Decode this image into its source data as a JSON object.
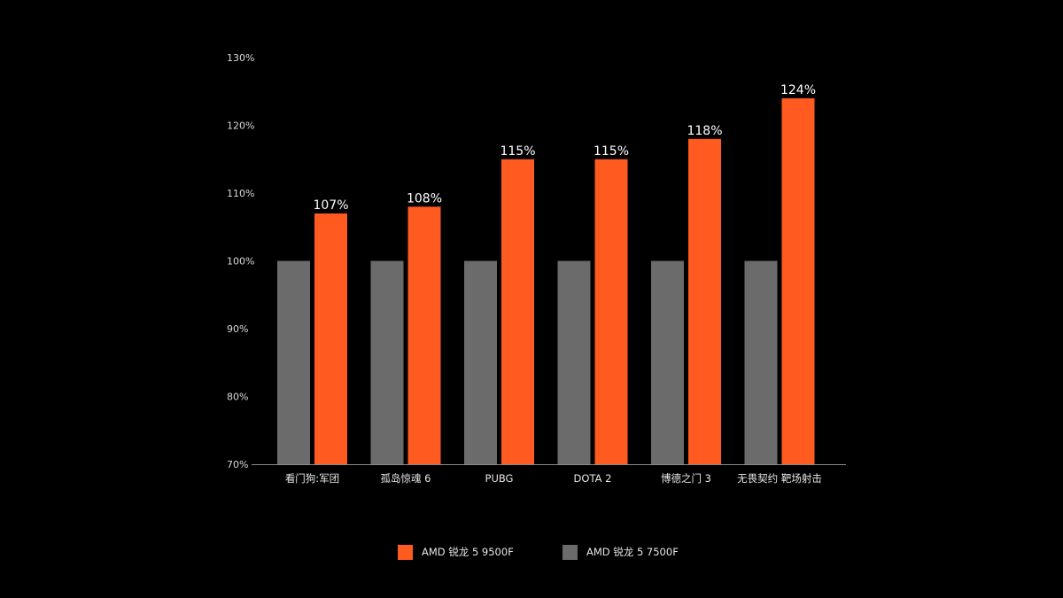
{
  "chart_data": {
    "type": "bar",
    "title": "",
    "xlabel": "",
    "ylabel": "",
    "categories": [
      "看门狗:军团",
      "孤岛惊魂 6",
      "PUBG",
      "DOTA 2",
      "博德之门 3",
      "无畏契约 靶场射击"
    ],
    "series": [
      {
        "name": "AMD 锐龙 5 7500F",
        "color": "#6b6b6b",
        "values": [
          100,
          100,
          100,
          100,
          100,
          100
        ]
      },
      {
        "name": "AMD 锐龙 5 9500F",
        "color": "#ff5a1f",
        "values": [
          107,
          108,
          115,
          115,
          118,
          124
        ],
        "data_labels": [
          "107%",
          "108%",
          "115%",
          "115%",
          "118%",
          "124%"
        ]
      }
    ],
    "ylim": [
      70,
      130
    ],
    "yticks": [
      70,
      80,
      90,
      100,
      110,
      120,
      130
    ],
    "ytick_labels": [
      "70%",
      "80%",
      "90%",
      "100%",
      "110%",
      "120%",
      "130%"
    ],
    "grid": false,
    "legend_position": "bottom-center",
    "legend_order": [
      "AMD 锐龙 5 9500F",
      "AMD 锐龙 5 7500F"
    ]
  }
}
